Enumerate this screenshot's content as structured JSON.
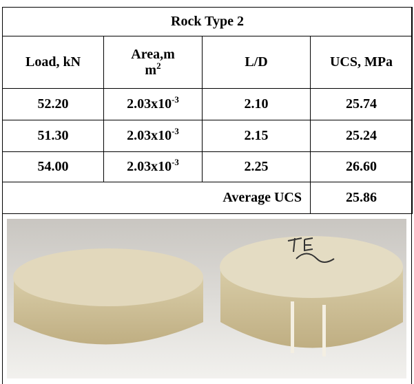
{
  "table": {
    "title": "Rock Type 2",
    "header": {
      "load": "Load, kN",
      "area": {
        "line1": "Area,m",
        "line2": "m",
        "sup": "2"
      },
      "ld": "L/D",
      "ucs": "UCS, MPa"
    },
    "rows": [
      {
        "load": "52.20",
        "area": {
          "base": "2.03x10",
          "sup": "-3"
        },
        "ld": "2.10",
        "ucs": "25.74"
      },
      {
        "load": "51.30",
        "area": {
          "base": "2.03x10",
          "sup": "-3"
        },
        "ld": "2.15",
        "ucs": "25.24"
      },
      {
        "load": "54.00",
        "area": {
          "base": "2.03x10",
          "sup": "-3"
        },
        "ld": "2.25",
        "ucs": "26.60"
      }
    ],
    "average": {
      "label": "Average UCS",
      "value": "25.86"
    }
  }
}
